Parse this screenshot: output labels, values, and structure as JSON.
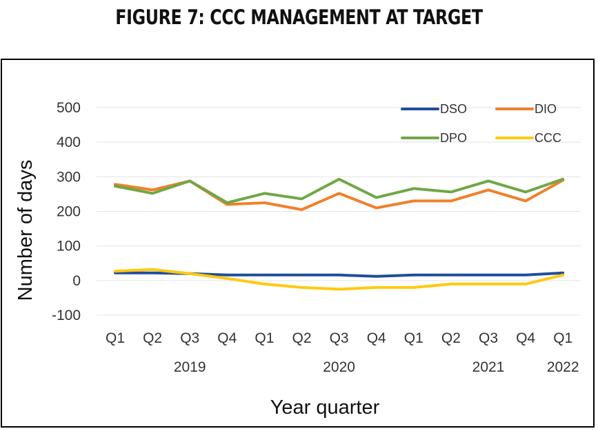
{
  "figure_title": "FIGURE 7: CCC MANAGEMENT AT TARGET",
  "chart_data": {
    "type": "line",
    "title": "FIGURE 7: CCC MANAGEMENT AT TARGET",
    "xlabel": "Year quarter",
    "ylabel": "Number of days",
    "categories": [
      "Q1",
      "Q2",
      "Q3",
      "Q4",
      "Q1",
      "Q2",
      "Q3",
      "Q4",
      "Q1",
      "Q2",
      "Q3",
      "Q4",
      "Q1"
    ],
    "year_labels": [
      {
        "label": "2019",
        "category_index": 2
      },
      {
        "label": "2020",
        "category_index": 6
      },
      {
        "label": "2021",
        "category_index": 10
      },
      {
        "label": "2022",
        "category_index": 12
      }
    ],
    "ylim": [
      -100,
      500
    ],
    "yticks": [
      500,
      400,
      300,
      200,
      100,
      0,
      -100
    ],
    "grid": true,
    "legend_position": "top-right",
    "series": [
      {
        "name": "DSO",
        "color": "#1f4e9c",
        "values": [
          22,
          22,
          20,
          16,
          16,
          16,
          16,
          12,
          16,
          16,
          16,
          16,
          22
        ]
      },
      {
        "name": "DIO",
        "color": "#f0802a",
        "values": [
          278,
          262,
          288,
          220,
          225,
          205,
          252,
          210,
          230,
          230,
          262,
          230,
          290
        ]
      },
      {
        "name": "DPO",
        "color": "#70a746",
        "values": [
          273,
          252,
          288,
          225,
          252,
          236,
          293,
          240,
          266,
          256,
          288,
          256,
          293
        ]
      },
      {
        "name": "CCC",
        "color": "#ffc90e",
        "values": [
          27,
          32,
          20,
          6,
          -10,
          -20,
          -25,
          -20,
          -20,
          -10,
          -10,
          -10,
          16
        ]
      }
    ]
  }
}
